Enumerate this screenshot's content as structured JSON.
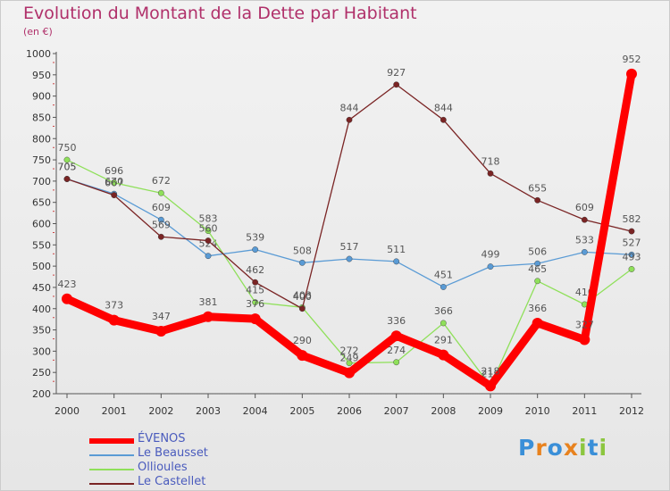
{
  "chart_data": {
    "type": "line",
    "title": "Evolution du Montant de la Dette par Habitant",
    "subtitle": "(en €)",
    "x": [
      "2000",
      "2001",
      "2002",
      "2003",
      "2004",
      "2005",
      "2006",
      "2007",
      "2008",
      "2009",
      "2010",
      "2011",
      "2012"
    ],
    "ylim": [
      200,
      1000
    ],
    "yticks": [
      200,
      250,
      300,
      350,
      400,
      450,
      500,
      550,
      600,
      650,
      700,
      750,
      800,
      850,
      900,
      950,
      1000
    ],
    "grid": false,
    "series": [
      {
        "name": "ÉVENOS",
        "color": "#ff0000",
        "values": [
          423,
          373,
          347,
          381,
          376,
          290,
          249,
          336,
          291,
          218,
          366,
          327,
          952
        ]
      },
      {
        "name": "Le Beausset",
        "color": "#5a9bd5",
        "values": [
          705,
          670,
          609,
          524,
          539,
          508,
          517,
          511,
          451,
          499,
          506,
          533,
          527
        ]
      },
      {
        "name": "Ollioules",
        "color": "#8fe05a",
        "values": [
          750,
          696,
          672,
          583,
          415,
          403,
          272,
          274,
          366,
          218,
          465,
          410,
          493
        ]
      },
      {
        "name": "Le Castellet",
        "color": "#7a2424",
        "values": [
          705,
          667,
          569,
          560,
          462,
          400,
          844,
          927,
          844,
          718,
          655,
          609,
          582
        ]
      }
    ]
  },
  "logo": {
    "letters": [
      "P",
      "r",
      "o",
      "x",
      "i",
      "t",
      "i"
    ],
    "colors": [
      "#3a8fd8",
      "#e8821e",
      "#3a8fd8",
      "#e8821e",
      "#8cc63f",
      "#3a8fd8",
      "#8cc63f"
    ]
  }
}
